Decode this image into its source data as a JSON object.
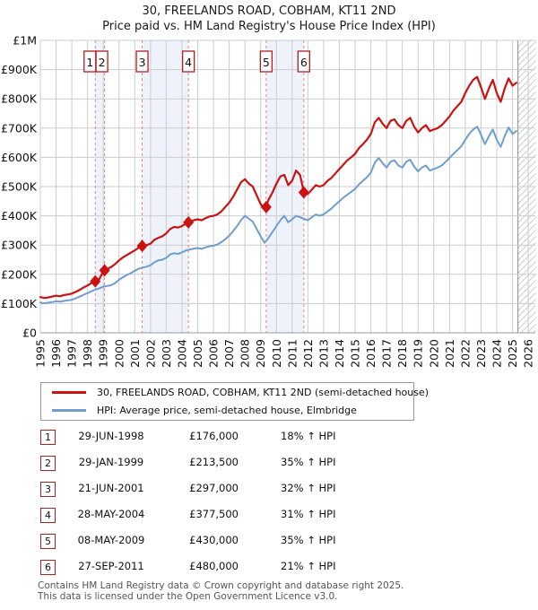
{
  "chart_data": {
    "type": "line",
    "title": "30, FREELANDS ROAD, COBHAM, KT11 2ND",
    "subtitle": "Price paid vs. HM Land Registry's House Price Index (HPI)",
    "xlim": [
      1995,
      2026.45
    ],
    "ylim": [
      0,
      1000000
    ],
    "x_ticks": [
      1995,
      1996,
      1997,
      1998,
      1999,
      2000,
      2001,
      2002,
      2003,
      2004,
      2005,
      2006,
      2007,
      2008,
      2009,
      2010,
      2011,
      2012,
      2013,
      2014,
      2015,
      2016,
      2017,
      2018,
      2019,
      2020,
      2021,
      2022,
      2023,
      2024,
      2025,
      2026
    ],
    "y_ticks": [
      {
        "value": 0,
        "label": "£0"
      },
      {
        "value": 100000,
        "label": "£100K"
      },
      {
        "value": 200000,
        "label": "£200K"
      },
      {
        "value": 300000,
        "label": "£300K"
      },
      {
        "value": 400000,
        "label": "£400K"
      },
      {
        "value": 500000,
        "label": "£500K"
      },
      {
        "value": 600000,
        "label": "£600K"
      },
      {
        "value": 700000,
        "label": "£700K"
      },
      {
        "value": 800000,
        "label": "£800K"
      },
      {
        "value": 900000,
        "label": "£900K"
      },
      {
        "value": 1000000,
        "label": "£1M"
      }
    ],
    "grid": true,
    "legend_position": "bottom",
    "x_start": 1995.0,
    "x_step": 0.25,
    "hatch_from": 2025.35,
    "ownership_bands": [
      [
        1998.49,
        1999.08
      ],
      [
        2001.47,
        2004.41
      ],
      [
        2009.35,
        2011.74
      ]
    ],
    "series": [
      {
        "name": "30, FREELANDS ROAD, COBHAM, KT11 2ND (semi-detached house)",
        "color": "#cc1111",
        "width": 2.2,
        "values_gbp_thousands": [
          122,
          119,
          121,
          124,
          127,
          125,
          129,
          131,
          134,
          140,
          147,
          155,
          162,
          170,
          176,
          184,
          210,
          218,
          225,
          235,
          248,
          258,
          266,
          274,
          282,
          291,
          297,
          300,
          305,
          318,
          325,
          330,
          340,
          355,
          362,
          360,
          365,
          374,
          380,
          385,
          388,
          385,
          392,
          398,
          400,
          405,
          415,
          430,
          445,
          465,
          490,
          515,
          525,
          510,
          500,
          470,
          440,
          422,
          455,
          480,
          510,
          535,
          540,
          505,
          520,
          555,
          540,
          480,
          475,
          490,
          505,
          500,
          505,
          520,
          530,
          545,
          560,
          575,
          590,
          600,
          612,
          632,
          645,
          660,
          680,
          720,
          735,
          715,
          700,
          725,
          730,
          710,
          700,
          725,
          735,
          705,
          685,
          700,
          710,
          690,
          695,
          700,
          710,
          725,
          740,
          760,
          775,
          790,
          820,
          845,
          865,
          875,
          840,
          800,
          835,
          865,
          820,
          790,
          835,
          870,
          845,
          855
        ]
      },
      {
        "name": "HPI: Average price, semi-detached house, Elmbridge",
        "color": "#6e9ecf",
        "width": 2,
        "values_gbp_thousands": [
          103,
          101,
          103,
          105,
          108,
          106,
          109,
          111,
          113,
          118,
          124,
          130,
          136,
          142,
          148,
          152,
          158,
          160,
          163,
          170,
          182,
          190,
          198,
          204,
          212,
          219,
          223,
          226,
          231,
          241,
          248,
          250,
          256,
          268,
          272,
          270,
          275,
          282,
          285,
          288,
          290,
          287,
          292,
          296,
          298,
          302,
          310,
          320,
          332,
          348,
          365,
          385,
          400,
          390,
          380,
          355,
          330,
          308,
          325,
          345,
          365,
          385,
          400,
          378,
          388,
          400,
          395,
          390,
          385,
          395,
          405,
          400,
          405,
          415,
          425,
          438,
          450,
          462,
          472,
          482,
          492,
          508,
          520,
          532,
          548,
          582,
          598,
          580,
          565,
          585,
          590,
          572,
          565,
          585,
          592,
          568,
          552,
          565,
          572,
          555,
          560,
          565,
          572,
          585,
          598,
          612,
          625,
          638,
          660,
          680,
          695,
          705,
          678,
          645,
          672,
          695,
          660,
          636,
          672,
          702,
          680,
          690
        ]
      }
    ],
    "sales": [
      {
        "n": "1",
        "x": 1998.49,
        "price_gbp": 176000
      },
      {
        "n": "2",
        "x": 1999.08,
        "price_gbp": 213500
      },
      {
        "n": "3",
        "x": 2001.47,
        "price_gbp": 297000
      },
      {
        "n": "4",
        "x": 2004.41,
        "price_gbp": 377500
      },
      {
        "n": "5",
        "x": 2009.35,
        "price_gbp": 430000
      },
      {
        "n": "6",
        "x": 2011.74,
        "price_gbp": 480000
      }
    ],
    "colors": {
      "band_fill": "#eef2fb",
      "grid": "#cccccc",
      "axis": "#999999",
      "sale_dash": "#f08080",
      "hatch_stroke": "#bfc4cd",
      "hatch_edge": "#888888",
      "marker_box_border": "#b02020"
    }
  },
  "transactions": [
    {
      "n": "1",
      "date": "29-JUN-1998",
      "price": "£176,000",
      "hpi": "18% ↑ HPI"
    },
    {
      "n": "2",
      "date": "29-JAN-1999",
      "price": "£213,500",
      "hpi": "35% ↑ HPI"
    },
    {
      "n": "3",
      "date": "21-JUN-2001",
      "price": "£297,000",
      "hpi": "32% ↑ HPI"
    },
    {
      "n": "4",
      "date": "28-MAY-2004",
      "price": "£377,500",
      "hpi": "31% ↑ HPI"
    },
    {
      "n": "5",
      "date": "08-MAY-2009",
      "price": "£430,000",
      "hpi": "35% ↑ HPI"
    },
    {
      "n": "6",
      "date": "27-SEP-2011",
      "price": "£480,000",
      "hpi": "21% ↑ HPI"
    }
  ],
  "footer": {
    "line1": "Contains HM Land Registry data © Crown copyright and database right 2025.",
    "line2": "This data is licensed under the Open Government Licence v3.0."
  }
}
